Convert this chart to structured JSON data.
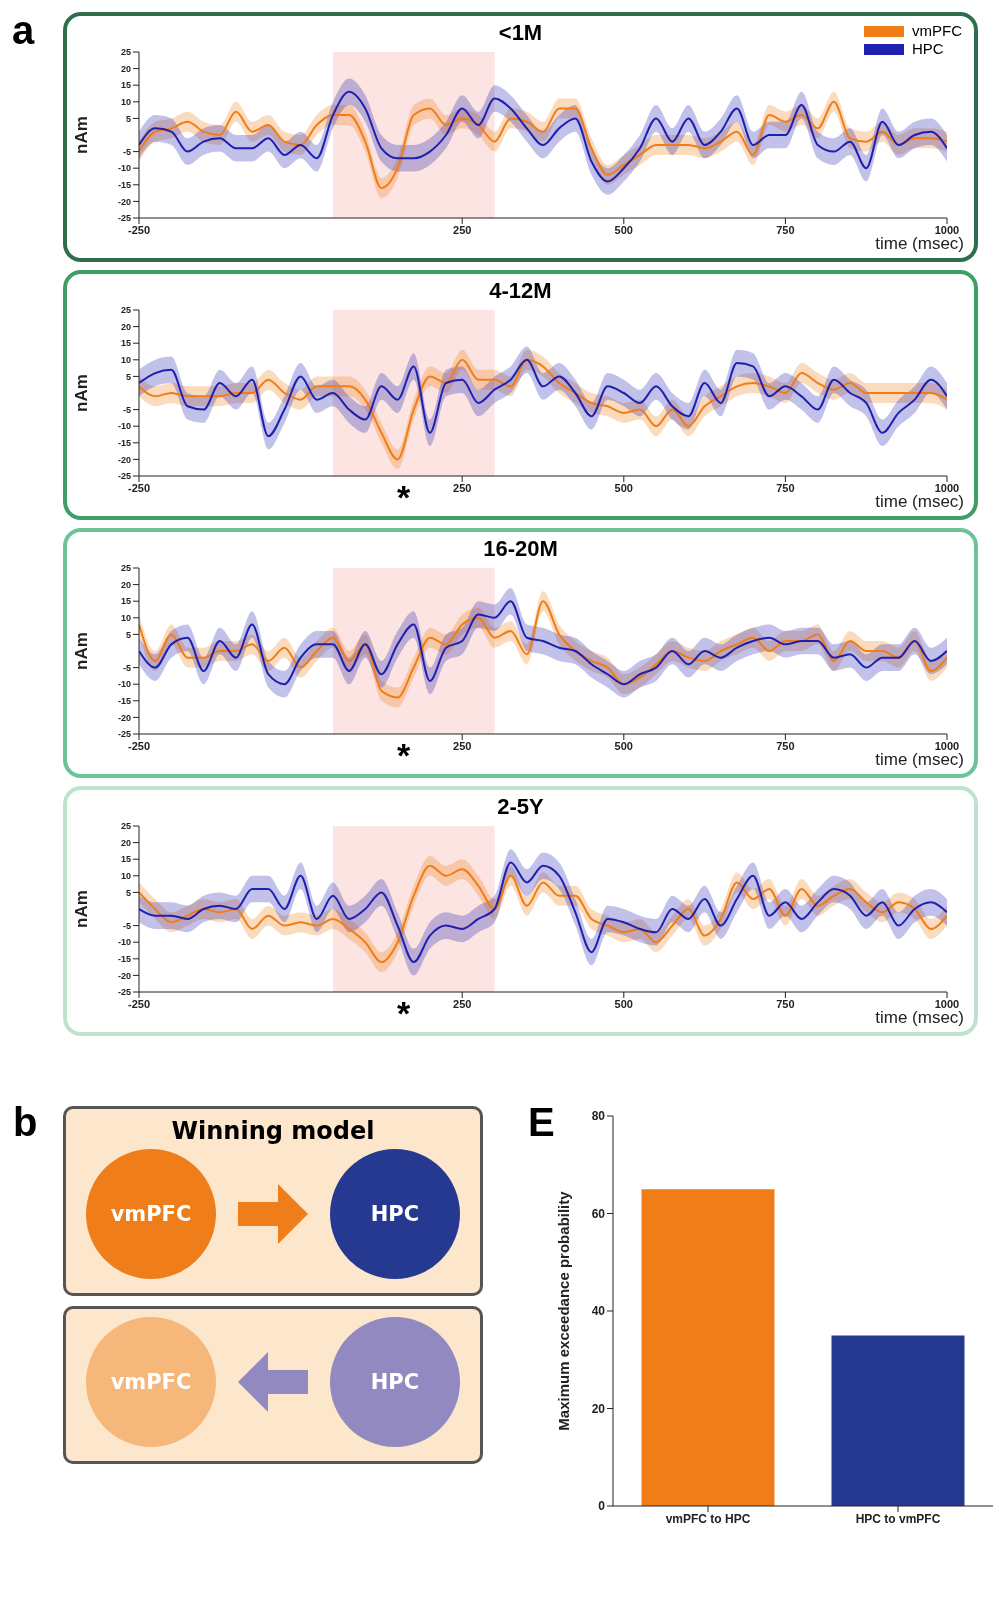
{
  "chart_data": [
    {
      "type": "line",
      "title": "<1M",
      "xlabel": "time (msec)",
      "ylabel": "nAm",
      "legend": "top right",
      "annotations": [
        "a"
      ],
      "x": [
        -250,
        -225,
        -200,
        -175,
        -150,
        -125,
        -100,
        -75,
        -50,
        -25,
        0,
        25,
        50,
        75,
        100,
        125,
        150,
        175,
        200,
        225,
        250,
        275,
        300,
        325,
        350,
        375,
        400,
        425,
        450,
        475,
        500,
        525,
        550,
        575,
        600,
        625,
        650,
        675,
        700,
        725,
        750,
        775,
        800,
        825,
        850,
        875,
        900,
        925,
        950,
        975,
        1000
      ],
      "series": [
        {
          "name": "vmPFC",
          "color": "#f07d17",
          "values": [
            -5,
            1,
            2,
            4,
            1,
            0,
            7,
            1,
            3,
            -2,
            -3,
            3,
            6,
            6,
            -2,
            -16,
            -10,
            6,
            8,
            3,
            5,
            3,
            -2,
            5,
            4,
            1,
            8,
            8,
            -4,
            -12,
            -9,
            -6,
            -3,
            -3,
            -3,
            -4,
            -2,
            1,
            -6,
            6,
            4,
            6,
            2,
            10,
            -1,
            -2,
            1,
            -3,
            -1,
            -1,
            -2
          ],
          "upper": [
            -2,
            4,
            5,
            7,
            4,
            3,
            10,
            4,
            6,
            1,
            0,
            6,
            9,
            9,
            1,
            -13,
            -7,
            9,
            11,
            6,
            8,
            6,
            1,
            8,
            7,
            4,
            11,
            11,
            -1,
            -9,
            -6,
            -3,
            0,
            0,
            0,
            -1,
            1,
            4,
            -3,
            9,
            7,
            9,
            5,
            13,
            2,
            1,
            4,
            0,
            2,
            2,
            1
          ],
          "lower": [
            -8,
            -2,
            -1,
            1,
            -2,
            -3,
            4,
            -2,
            0,
            -5,
            -6,
            0,
            3,
            3,
            -5,
            -19,
            -13,
            3,
            5,
            0,
            2,
            0,
            -5,
            2,
            1,
            -2,
            5,
            5,
            -7,
            -15,
            -12,
            -9,
            -6,
            -6,
            -6,
            -7,
            -5,
            -2,
            -9,
            3,
            1,
            3,
            -1,
            7,
            -4,
            -5,
            -2,
            -6,
            -4,
            -4,
            -5
          ]
        },
        {
          "name": "HPC",
          "color": "#1f1fb0",
          "values": [
            -3,
            2,
            1,
            -5,
            -2,
            -1,
            -4,
            -4,
            -1,
            -6,
            -3,
            -7,
            6,
            13,
            8,
            -4,
            -7,
            -7,
            -5,
            0,
            8,
            3,
            11,
            8,
            2,
            -3,
            2,
            5,
            -8,
            -14,
            -10,
            -4,
            5,
            -2,
            5,
            -3,
            1,
            8,
            -3,
            0,
            0,
            9,
            -3,
            -5,
            -2,
            -10,
            4,
            -3,
            0,
            1,
            -4
          ],
          "upper": [
            1,
            6,
            5,
            -1,
            2,
            3,
            0,
            0,
            3,
            -2,
            1,
            -3,
            10,
            17,
            12,
            0,
            -3,
            -3,
            -1,
            4,
            12,
            7,
            15,
            12,
            6,
            1,
            6,
            9,
            -4,
            -10,
            -6,
            0,
            9,
            2,
            9,
            1,
            5,
            12,
            1,
            4,
            4,
            13,
            1,
            -1,
            2,
            -6,
            8,
            1,
            4,
            5,
            0
          ],
          "lower": [
            -7,
            -2,
            -3,
            -9,
            -6,
            -5,
            -8,
            -8,
            -5,
            -10,
            -7,
            -11,
            2,
            9,
            4,
            -8,
            -11,
            -11,
            -9,
            -4,
            4,
            -1,
            7,
            4,
            -2,
            -7,
            -2,
            1,
            -12,
            -18,
            -14,
            -8,
            1,
            -6,
            1,
            -7,
            -3,
            4,
            -7,
            -4,
            -4,
            5,
            -7,
            -9,
            -6,
            -14,
            0,
            -7,
            -4,
            -3,
            -8
          ]
        }
      ],
      "bands": [
        {
          "axis": "x",
          "from": 50,
          "to": 300,
          "color": "#fbe4e1"
        }
      ],
      "xlim": [
        -250,
        1000
      ],
      "xticks": [
        -250,
        250,
        500,
        750,
        1000
      ],
      "ylim": [
        -25,
        25
      ],
      "yticks": [
        -25,
        -20,
        -15,
        -10,
        -5,
        5,
        10,
        15,
        20,
        25
      ]
    },
    {
      "type": "line",
      "title": "4-12M",
      "xlabel": "time (msec)",
      "ylabel": "nAm",
      "annotations": [
        "*"
      ],
      "x": [
        -250,
        -225,
        -200,
        -175,
        -150,
        -125,
        -100,
        -75,
        -50,
        -25,
        0,
        25,
        50,
        75,
        100,
        125,
        150,
        175,
        200,
        225,
        250,
        275,
        300,
        325,
        350,
        375,
        400,
        425,
        450,
        475,
        500,
        525,
        550,
        575,
        600,
        625,
        650,
        675,
        700,
        725,
        750,
        775,
        800,
        825,
        850,
        875,
        900,
        925,
        950,
        975,
        1000
      ],
      "series": [
        {
          "color": "#f07d17",
          "values": [
            2,
            -1,
            0,
            -1,
            -1,
            -1,
            0,
            0,
            4,
            0,
            -2,
            2,
            2,
            2,
            -2,
            -12,
            -20,
            -5,
            5,
            3,
            10,
            4,
            4,
            2,
            10,
            8,
            3,
            0,
            -3,
            -4,
            -6,
            -5,
            -10,
            -5,
            -10,
            -4,
            -1,
            2,
            3,
            2,
            0,
            6,
            3,
            1,
            3,
            0,
            0,
            0,
            0,
            0,
            -2
          ],
          "upper": [
            5,
            2,
            3,
            2,
            2,
            2,
            3,
            3,
            7,
            3,
            1,
            5,
            5,
            5,
            1,
            -9,
            -17,
            -2,
            8,
            6,
            13,
            7,
            7,
            5,
            13,
            11,
            6,
            3,
            0,
            -1,
            -3,
            -2,
            -7,
            -2,
            -7,
            -1,
            2,
            5,
            6,
            5,
            3,
            9,
            6,
            4,
            6,
            3,
            3,
            3,
            3,
            3,
            1
          ],
          "lower": [
            -1,
            -4,
            -3,
            -4,
            -4,
            -4,
            -3,
            -3,
            1,
            -3,
            -5,
            -1,
            -1,
            -1,
            -5,
            -15,
            -23,
            -8,
            2,
            0,
            7,
            1,
            1,
            -1,
            7,
            5,
            0,
            -3,
            -6,
            -7,
            -9,
            -8,
            -13,
            -8,
            -13,
            -7,
            -4,
            -1,
            0,
            -1,
            -3,
            3,
            0,
            -2,
            0,
            -3,
            -3,
            -3,
            -3,
            -3,
            -5
          ]
        },
        {
          "color": "#1f1fb0",
          "values": [
            3,
            6,
            7,
            -4,
            -5,
            3,
            -1,
            4,
            -13,
            -5,
            5,
            -2,
            0,
            -5,
            -8,
            2,
            -2,
            8,
            -12,
            3,
            4,
            -3,
            1,
            4,
            10,
            2,
            5,
            0,
            -7,
            2,
            0,
            -3,
            2,
            -4,
            -7,
            3,
            -3,
            9,
            8,
            -1,
            2,
            -1,
            -5,
            4,
            0,
            -3,
            -12,
            -6,
            -2,
            4,
            -1
          ],
          "upper": [
            7,
            10,
            11,
            0,
            -1,
            7,
            3,
            8,
            -9,
            -1,
            9,
            2,
            4,
            -1,
            -4,
            6,
            2,
            12,
            -8,
            7,
            8,
            1,
            5,
            8,
            14,
            6,
            9,
            4,
            -3,
            6,
            4,
            1,
            6,
            0,
            -3,
            7,
            1,
            13,
            12,
            3,
            6,
            3,
            -1,
            8,
            4,
            1,
            -8,
            -2,
            2,
            8,
            3
          ],
          "lower": [
            -1,
            2,
            3,
            -8,
            -9,
            -1,
            -5,
            0,
            -17,
            -9,
            1,
            -6,
            -4,
            -9,
            -12,
            -2,
            -6,
            4,
            -16,
            -1,
            0,
            -7,
            -3,
            0,
            6,
            -2,
            1,
            -4,
            -11,
            -2,
            -4,
            -7,
            -2,
            -8,
            -11,
            -1,
            -7,
            5,
            4,
            -5,
            -2,
            -5,
            -9,
            0,
            -4,
            -7,
            -16,
            -10,
            -6,
            0,
            -5
          ]
        }
      ],
      "bands": [
        {
          "axis": "x",
          "from": 50,
          "to": 300,
          "color": "#fbe4e1"
        }
      ],
      "xlim": [
        -250,
        1000
      ],
      "xticks": [
        -250,
        250,
        500,
        750,
        1000
      ],
      "ylim": [
        -25,
        25
      ],
      "yticks": [
        -25,
        -20,
        -15,
        -10,
        -5,
        5,
        10,
        15,
        20,
        25
      ]
    },
    {
      "type": "line",
      "title": "16-20M",
      "xlabel": "time (msec)",
      "ylabel": "nAm",
      "annotations": [
        "*"
      ],
      "x": [
        -250,
        -225,
        -200,
        -175,
        -150,
        -125,
        -100,
        -75,
        -50,
        -25,
        0,
        25,
        50,
        75,
        100,
        125,
        150,
        175,
        200,
        225,
        250,
        275,
        300,
        325,
        350,
        375,
        400,
        425,
        450,
        475,
        500,
        525,
        550,
        575,
        600,
        625,
        650,
        675,
        700,
        725,
        750,
        775,
        800,
        825,
        850,
        875,
        900,
        925,
        950,
        975,
        1000
      ],
      "series": [
        {
          "color": "#f07d17",
          "values": [
            8,
            -3,
            5,
            -2,
            -2,
            0,
            0,
            2,
            -3,
            1,
            -5,
            0,
            4,
            -3,
            2,
            -12,
            -14,
            -5,
            4,
            2,
            8,
            10,
            4,
            6,
            -1,
            15,
            5,
            0,
            -3,
            -5,
            -10,
            -8,
            -4,
            0,
            -2,
            -3,
            0,
            2,
            4,
            0,
            3,
            3,
            5,
            -3,
            3,
            0,
            0,
            -2,
            3,
            -6,
            -2
          ],
          "upper": [
            11,
            0,
            8,
            1,
            1,
            3,
            3,
            5,
            0,
            4,
            -2,
            3,
            7,
            0,
            5,
            -9,
            -11,
            -2,
            7,
            5,
            11,
            13,
            7,
            9,
            2,
            18,
            8,
            3,
            0,
            -2,
            -7,
            -5,
            -1,
            3,
            1,
            0,
            3,
            5,
            7,
            3,
            6,
            6,
            8,
            0,
            6,
            3,
            3,
            1,
            6,
            -3,
            1
          ],
          "lower": [
            5,
            -6,
            2,
            -5,
            -5,
            -3,
            -3,
            -1,
            -6,
            -2,
            -8,
            -3,
            1,
            -6,
            -1,
            -15,
            -17,
            -8,
            1,
            -1,
            5,
            7,
            1,
            3,
            -4,
            12,
            2,
            -3,
            -6,
            -8,
            -13,
            -11,
            -7,
            -3,
            -5,
            -6,
            -3,
            -1,
            1,
            -3,
            0,
            0,
            2,
            -6,
            0,
            -3,
            -3,
            -5,
            0,
            -9,
            -5
          ]
        },
        {
          "color": "#1f1fb0",
          "values": [
            0,
            -5,
            2,
            4,
            -6,
            3,
            -2,
            8,
            -7,
            -10,
            -2,
            2,
            2,
            -6,
            2,
            -7,
            2,
            8,
            -9,
            1,
            3,
            11,
            10,
            15,
            4,
            3,
            1,
            0,
            -4,
            -7,
            -10,
            -7,
            -5,
            0,
            -4,
            0,
            -2,
            1,
            3,
            4,
            2,
            3,
            3,
            -2,
            -1,
            -5,
            -2,
            -2,
            3,
            -3,
            0
          ],
          "upper": [
            4,
            -1,
            6,
            8,
            -2,
            7,
            2,
            12,
            -3,
            -6,
            2,
            6,
            6,
            -2,
            6,
            -3,
            6,
            12,
            -5,
            5,
            7,
            15,
            14,
            19,
            8,
            7,
            5,
            4,
            0,
            -3,
            -6,
            -3,
            -1,
            4,
            0,
            4,
            2,
            5,
            7,
            8,
            6,
            7,
            7,
            2,
            3,
            -1,
            2,
            2,
            7,
            1,
            4
          ],
          "lower": [
            -4,
            -9,
            -2,
            0,
            -10,
            -1,
            -6,
            4,
            -11,
            -14,
            -6,
            -2,
            -2,
            -10,
            -2,
            -11,
            -2,
            4,
            -13,
            -3,
            -1,
            7,
            6,
            11,
            0,
            -1,
            -3,
            -4,
            -8,
            -11,
            -14,
            -11,
            -9,
            -4,
            -8,
            -4,
            -6,
            -3,
            -1,
            0,
            -2,
            -1,
            -1,
            -6,
            -5,
            -9,
            -6,
            -6,
            -1,
            -7,
            -4
          ]
        }
      ],
      "bands": [
        {
          "axis": "x",
          "from": 50,
          "to": 300,
          "color": "#fbe4e1"
        }
      ],
      "xlim": [
        -250,
        1000
      ],
      "xticks": [
        -250,
        250,
        500,
        750,
        1000
      ],
      "ylim": [
        -25,
        25
      ],
      "yticks": [
        -25,
        -20,
        -15,
        -10,
        -5,
        5,
        10,
        15,
        20,
        25
      ]
    },
    {
      "type": "line",
      "title": "2-5Y",
      "xlabel": "time (msec)",
      "ylabel": "nAm",
      "annotations": [
        "*"
      ],
      "x": [
        -250,
        -225,
        -200,
        -175,
        -150,
        -125,
        -100,
        -75,
        -50,
        -25,
        0,
        25,
        50,
        75,
        100,
        125,
        150,
        175,
        200,
        225,
        250,
        275,
        300,
        325,
        350,
        375,
        400,
        425,
        450,
        475,
        500,
        525,
        550,
        575,
        600,
        625,
        650,
        675,
        700,
        725,
        750,
        775,
        800,
        825,
        850,
        875,
        900,
        925,
        950,
        975,
        1000
      ],
      "series": [
        {
          "color": "#f07d17",
          "values": [
            5,
            0,
            -4,
            -2,
            0,
            -1,
            0,
            -6,
            -2,
            -5,
            -4,
            -5,
            -3,
            -6,
            -10,
            -16,
            -10,
            4,
            13,
            10,
            12,
            7,
            0,
            10,
            1,
            8,
            4,
            4,
            -3,
            -5,
            -7,
            -6,
            -10,
            -5,
            0,
            -8,
            -3,
            8,
            3,
            6,
            -2,
            6,
            1,
            4,
            6,
            2,
            -1,
            2,
            0,
            -6,
            -2
          ],
          "upper": [
            8,
            3,
            -1,
            1,
            3,
            2,
            3,
            -3,
            1,
            -2,
            -1,
            -2,
            0,
            -3,
            -7,
            -13,
            -7,
            7,
            16,
            13,
            15,
            10,
            3,
            13,
            4,
            11,
            7,
            7,
            0,
            -2,
            -4,
            -3,
            -7,
            -2,
            3,
            -5,
            0,
            11,
            6,
            9,
            1,
            9,
            4,
            7,
            9,
            5,
            2,
            5,
            3,
            -3,
            1
          ],
          "lower": [
            2,
            -3,
            -7,
            -5,
            -3,
            -4,
            -3,
            -9,
            -5,
            -8,
            -7,
            -8,
            -6,
            -9,
            -13,
            -19,
            -13,
            1,
            10,
            7,
            9,
            4,
            -3,
            7,
            -2,
            5,
            1,
            1,
            -6,
            -8,
            -10,
            -9,
            -13,
            -8,
            -3,
            -11,
            -6,
            5,
            0,
            3,
            -5,
            3,
            -2,
            1,
            3,
            -1,
            -4,
            -1,
            -3,
            -9,
            -5
          ]
        },
        {
          "color": "#1f1fb0",
          "values": [
            0,
            -2,
            -2,
            -3,
            0,
            1,
            0,
            6,
            6,
            0,
            10,
            -3,
            4,
            -3,
            0,
            5,
            -5,
            -16,
            -8,
            -5,
            -6,
            -3,
            0,
            14,
            8,
            13,
            10,
            -1,
            -13,
            -3,
            -4,
            -6,
            -7,
            0,
            -3,
            3,
            -5,
            3,
            10,
            -2,
            2,
            -3,
            2,
            6,
            4,
            -2,
            2,
            -5,
            0,
            2,
            -1
          ],
          "upper": [
            4,
            2,
            2,
            1,
            4,
            5,
            4,
            10,
            10,
            4,
            14,
            1,
            8,
            1,
            4,
            9,
            -1,
            -12,
            -4,
            -1,
            -2,
            1,
            4,
            18,
            12,
            17,
            14,
            3,
            -9,
            1,
            0,
            -2,
            -3,
            4,
            1,
            7,
            -1,
            7,
            14,
            2,
            6,
            1,
            6,
            10,
            8,
            2,
            6,
            -1,
            4,
            6,
            3
          ],
          "lower": [
            -4,
            -6,
            -6,
            -7,
            -4,
            -3,
            -4,
            2,
            2,
            -4,
            6,
            -7,
            0,
            -7,
            -4,
            1,
            -9,
            -20,
            -12,
            -9,
            -10,
            -7,
            -4,
            10,
            4,
            9,
            6,
            -5,
            -17,
            -7,
            -8,
            -10,
            -11,
            -4,
            -7,
            -1,
            -9,
            -1,
            6,
            -6,
            -2,
            -7,
            -2,
            2,
            0,
            -6,
            -2,
            -9,
            -4,
            -2,
            -5
          ]
        }
      ],
      "bands": [
        {
          "axis": "x",
          "from": 50,
          "to": 300,
          "color": "#fbe4e1"
        }
      ],
      "xlim": [
        -250,
        1000
      ],
      "xticks": [
        -250,
        250,
        500,
        750,
        1000
      ],
      "ylim": [
        -25,
        25
      ],
      "yticks": [
        -25,
        -20,
        -15,
        -10,
        -5,
        5,
        10,
        15,
        20,
        25
      ]
    },
    {
      "type": "other",
      "title": "Winning model",
      "annotations": [
        "b"
      ],
      "categories": [
        "vmPFC",
        "HPC",
        "vmPFC",
        "HPC"
      ],
      "colors": [
        "#ef7d1a",
        "#24398f",
        "#f5b77a",
        "#9189bf"
      ]
    },
    {
      "type": "bar",
      "ylabel": "Maximum exceedance probability",
      "annotations": [
        "E"
      ],
      "categories": [
        "vmPFC to HPC",
        "HPC to vmPFC"
      ],
      "values": [
        65,
        35
      ],
      "colors": [
        "#f07d17",
        "#24398f"
      ],
      "ylim": [
        0,
        80
      ],
      "yticks": [
        0,
        20,
        40,
        60,
        80
      ]
    }
  ]
}
